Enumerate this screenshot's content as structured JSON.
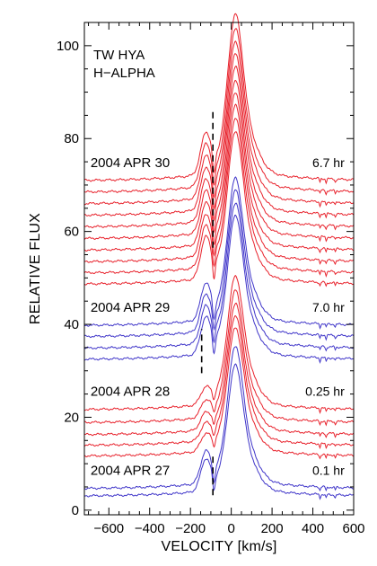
{
  "chart_data": {
    "type": "line",
    "title": "",
    "annotations": [
      "TW HYA",
      "H−ALPHA"
    ],
    "xlabel": "VELOCITY [km/s]",
    "ylabel": "RELATIVE FLUX",
    "xlim": [
      -720,
      600
    ],
    "ylim": [
      -1,
      105
    ],
    "xticks": [
      -600,
      -400,
      -200,
      0,
      200,
      400,
      600
    ],
    "xtick_labels": [
      "−600",
      "−400",
      "−200",
      "0",
      "200",
      "400",
      "600"
    ],
    "yticks": [
      0,
      20,
      40,
      60,
      80,
      100
    ],
    "ytick_labels": [
      "0",
      "20",
      "40",
      "60",
      "80",
      "100"
    ],
    "grid": false,
    "legend": "none",
    "colors": {
      "red": "#e8212b",
      "blue": "#3f35c9",
      "axis": "#000000"
    },
    "groups": [
      {
        "date": "2004 APR 27",
        "duration": "0.1 hr",
        "color": "#3f35c9",
        "offsets": [
          3.0,
          4.6
        ],
        "peaks": [
          23.8,
          25.9
        ],
        "shoulder": 6.5,
        "marker_velocity": -90,
        "marker_range": [
          3.2,
          12.0
        ]
      },
      {
        "date": "2004 APR 28",
        "duration": "0.25 hr",
        "color": "#e8212b",
        "offsets": [
          11.6,
          13.9,
          16.2,
          18.8,
          21.6
        ],
        "peaks": [
          23.3,
          23.6,
          23.8,
          24.0,
          24.3
        ],
        "shoulder": 3.4
      },
      {
        "date": "2004 APR 29",
        "duration": "7.0 hr",
        "color": "#3f35c9",
        "offsets": [
          32.4,
          34.8,
          37.3,
          39.7
        ],
        "peaks": [
          26.2,
          26.4,
          26.6,
          26.8
        ],
        "shoulder": 7.5,
        "marker_velocity": -145,
        "marker_range": [
          29.5,
          39.0
        ]
      },
      {
        "date": "2004 APR 30",
        "duration": "6.7 hr",
        "color": "#e8212b",
        "offsets": [
          48.6,
          51.0,
          53.4,
          55.9,
          58.4,
          60.9,
          63.4,
          65.9,
          68.4,
          70.9
        ],
        "peaks": [
          27.8,
          28.1,
          28.4,
          28.6,
          28.8,
          29.1,
          29.3,
          29.5,
          29.8,
          30.2
        ],
        "shoulder": 8.5,
        "marker_velocity": -90,
        "marker_range": [
          56.5,
          86.0
        ]
      }
    ]
  }
}
